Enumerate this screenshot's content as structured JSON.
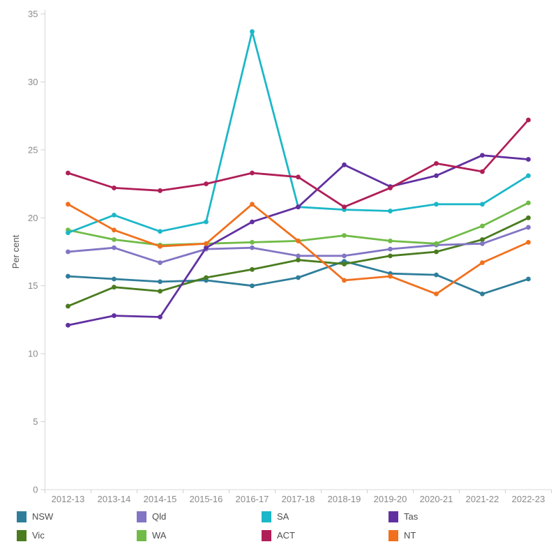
{
  "chart_data": {
    "type": "line",
    "title": "",
    "xlabel": "",
    "ylabel": "Per cent",
    "ylim": [
      0,
      35
    ],
    "yticks": [
      0,
      5,
      10,
      15,
      20,
      25,
      30,
      35
    ],
    "grid": false,
    "legend_position": "bottom",
    "categories": [
      "2012-13",
      "2013-14",
      "2014-15",
      "2015-16",
      "2016-17",
      "2017-18",
      "2018-19",
      "2019-20",
      "2020-21",
      "2021-22",
      "2022-23"
    ],
    "series": [
      {
        "name": "NSW",
        "color": "#2e7e9b",
        "values": [
          15.7,
          15.5,
          15.3,
          15.4,
          15.0,
          15.6,
          16.8,
          15.9,
          15.8,
          14.4,
          15.5
        ]
      },
      {
        "name": "Vic",
        "color": "#4a7c1f",
        "values": [
          13.5,
          14.9,
          14.6,
          15.6,
          16.2,
          16.9,
          16.6,
          17.2,
          17.5,
          18.4,
          20.0
        ]
      },
      {
        "name": "Qld",
        "color": "#8175c4",
        "values": [
          17.5,
          17.8,
          16.7,
          17.7,
          17.8,
          17.2,
          17.2,
          17.7,
          18.0,
          18.1,
          19.3
        ]
      },
      {
        "name": "WA",
        "color": "#70bb47",
        "values": [
          19.1,
          18.4,
          18.0,
          18.1,
          18.2,
          18.3,
          18.7,
          18.3,
          18.1,
          19.4,
          21.1
        ]
      },
      {
        "name": "SA",
        "color": "#1cb7c9",
        "values": [
          18.9,
          20.2,
          19.0,
          19.7,
          33.7,
          20.8,
          20.6,
          20.5,
          21.0,
          21.0,
          23.1
        ]
      },
      {
        "name": "Tas",
        "color": "#6130a0",
        "values": [
          12.1,
          12.8,
          12.7,
          17.8,
          19.7,
          20.8,
          23.9,
          22.3,
          23.1,
          24.6,
          24.3
        ]
      },
      {
        "name": "ACT",
        "color": "#b01e57",
        "values": [
          23.3,
          22.2,
          22.0,
          22.5,
          23.3,
          23.0,
          20.8,
          22.2,
          24.0,
          23.4,
          27.2
        ]
      },
      {
        "name": "NT",
        "color": "#f1701e",
        "values": [
          21.0,
          19.1,
          17.9,
          18.1,
          21.0,
          18.3,
          15.4,
          15.7,
          14.4,
          16.7,
          18.2
        ]
      }
    ]
  },
  "legend": {
    "order": [
      "NSW",
      "Qld",
      "SA",
      "Tas",
      "Vic",
      "WA",
      "ACT",
      "NT"
    ]
  },
  "style": {
    "axis_line_color": "#d8d8d8",
    "tick_color": "#cfcfcf",
    "tick_label_color": "#8a8a8a",
    "axis_title_color": "#555555",
    "legend_label_color": "#4d4d4d",
    "background": "#ffffff"
  }
}
